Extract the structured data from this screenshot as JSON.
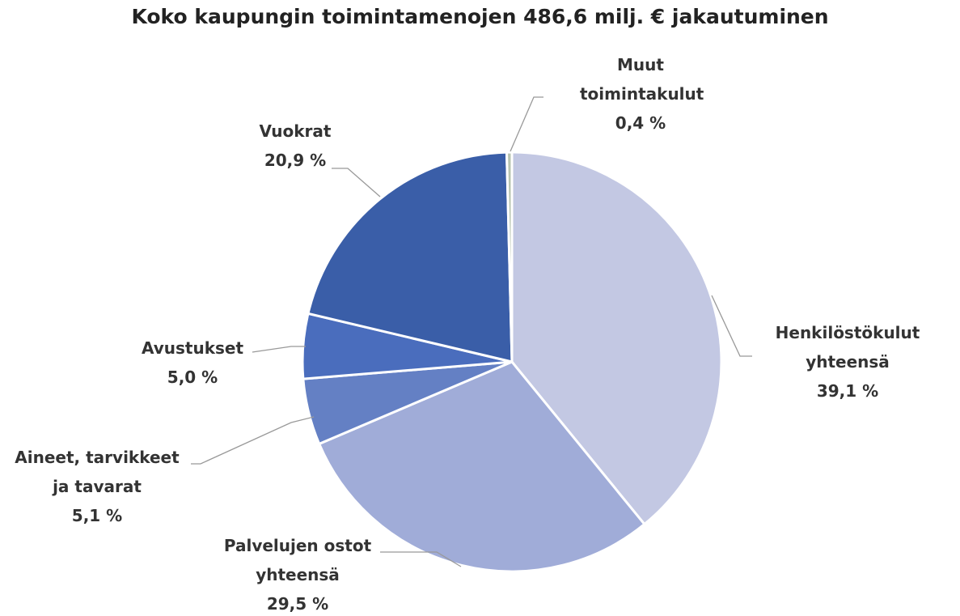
{
  "chart_data": {
    "type": "pie",
    "title": "Koko kaupungin toimintamenojen 486,6 milj. € jakautuminen",
    "categories": [
      "Henkilöstökulut yhteensä",
      "Palvelujen ostot yhteensä",
      "Aineet, tarvikkeet ja tavarat",
      "Avustukset",
      "Vuokrat",
      "Muut toimintakulut"
    ],
    "values": [
      39.1,
      29.5,
      5.1,
      5.0,
      20.9,
      0.4
    ],
    "value_labels": [
      "39,1 %",
      "29,5 %",
      "5,1 %",
      "5,0 %",
      "20,9 %",
      "0,4 %"
    ],
    "colors": [
      "#c3c8e3",
      "#a0acd8",
      "#6480c4",
      "#4a6dbd",
      "#3a5ea8",
      "#b8c4b0"
    ]
  }
}
